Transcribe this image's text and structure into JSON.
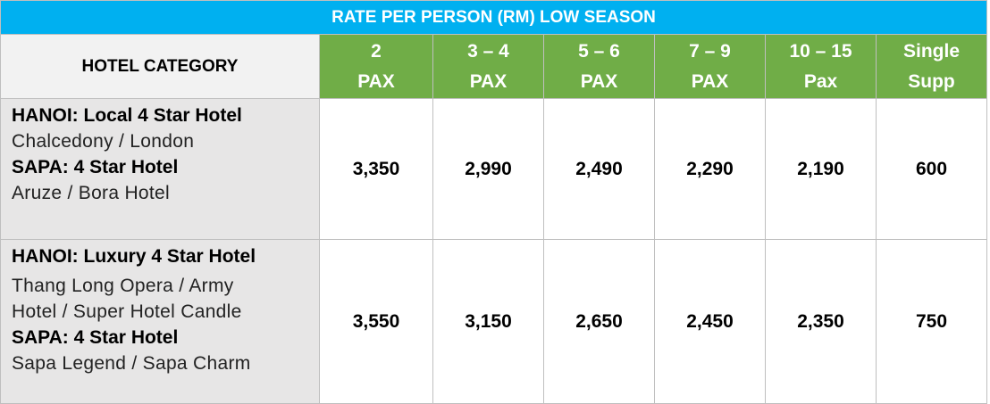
{
  "title": "RATE PER PERSON (RM) LOW SEASON",
  "header": {
    "category_label": "HOTEL CATEGORY",
    "columns": [
      {
        "line1": "2",
        "line2": "PAX"
      },
      {
        "line1": "3 – 4",
        "line2": "PAX"
      },
      {
        "line1": "5 – 6",
        "line2": "PAX"
      },
      {
        "line1": "7 – 9",
        "line2": "PAX"
      },
      {
        "line1": "10 – 15",
        "line2": "Pax"
      },
      {
        "line1": "Single",
        "line2": "Supp"
      }
    ]
  },
  "rows": [
    {
      "hanoi_label": "HANOI: Local 4 Star Hotel",
      "hanoi_hotels": "Chalcedony / London",
      "sapa_label": "SAPA: 4 Star Hotel",
      "sapa_hotels": "Aruze / Bora Hotel",
      "prices": [
        "3,350",
        "2,990",
        "2,490",
        "2,290",
        "2,190",
        "600"
      ]
    },
    {
      "hanoi_label": "HANOI: Luxury 4 Star Hotel",
      "hanoi_hotels_line1": "Thang Long Opera / Army",
      "hanoi_hotels_line2": "Hotel / Super Hotel Candle",
      "sapa_label": "SAPA: 4 Star Hotel",
      "sapa_hotels": "Sapa Legend / Sapa Charm",
      "prices": [
        "3,550",
        "3,150",
        "2,650",
        "2,450",
        "2,350",
        "750"
      ]
    }
  ],
  "colors": {
    "title_bg": "#00b0f0",
    "pax_header_bg": "#70ad47",
    "category_bg": "#e7e6e6"
  }
}
